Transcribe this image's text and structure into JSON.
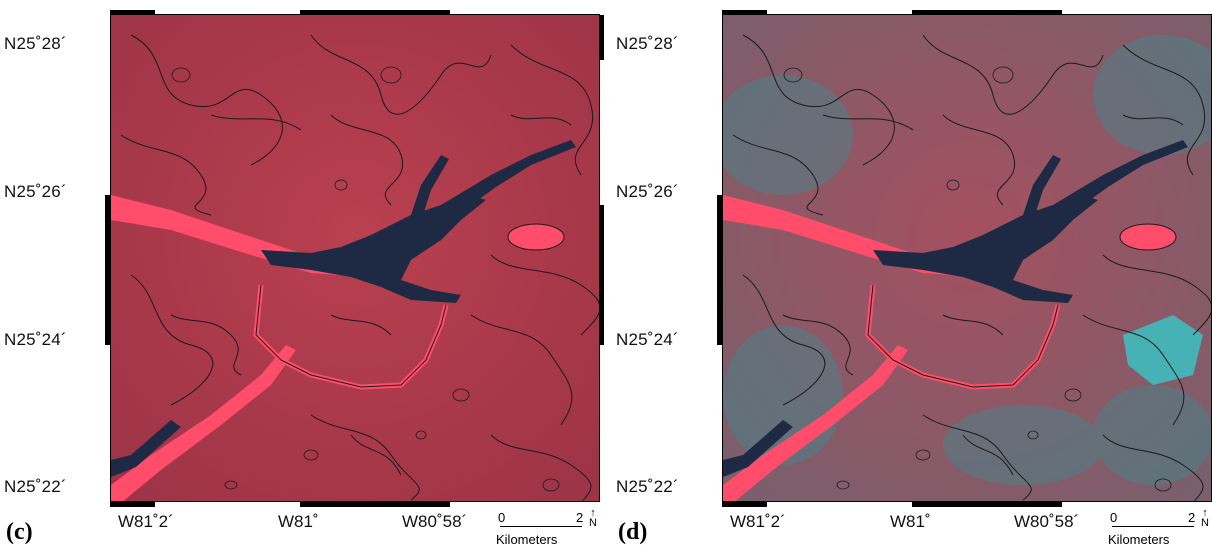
{
  "panels": [
    {
      "id": "c",
      "label": "(c)",
      "lat_labels": [
        "N25˚28´",
        "N25˚26´",
        "N25˚24´",
        "N25˚22´"
      ],
      "lon_labels": [
        "W81˚2´",
        "W81˚",
        "W80˚58´"
      ],
      "scale": {
        "min": "0",
        "max": "2",
        "unit": "Kilometers",
        "north": "N"
      },
      "tint": "#b93448",
      "tint_overlay": "none"
    },
    {
      "id": "d",
      "label": "(d)",
      "lat_labels": [
        "N25˚28´",
        "N25˚26´",
        "N25˚24´",
        "N25˚22´"
      ],
      "lon_labels": [
        "W81˚2´",
        "W81˚",
        "W80˚58´"
      ],
      "scale": {
        "min": "0",
        "max": "2",
        "unit": "Kilometers",
        "north": "N"
      },
      "tint": "#9a4a5e",
      "tint_overlay": "#3f8a8e"
    }
  ],
  "colors": {
    "land": "#b23a4f",
    "water": "#1e2a44",
    "bright_channel": "#ff4a6a",
    "contour": "#1a1a1a",
    "teal_patch": "#36c8c8"
  }
}
